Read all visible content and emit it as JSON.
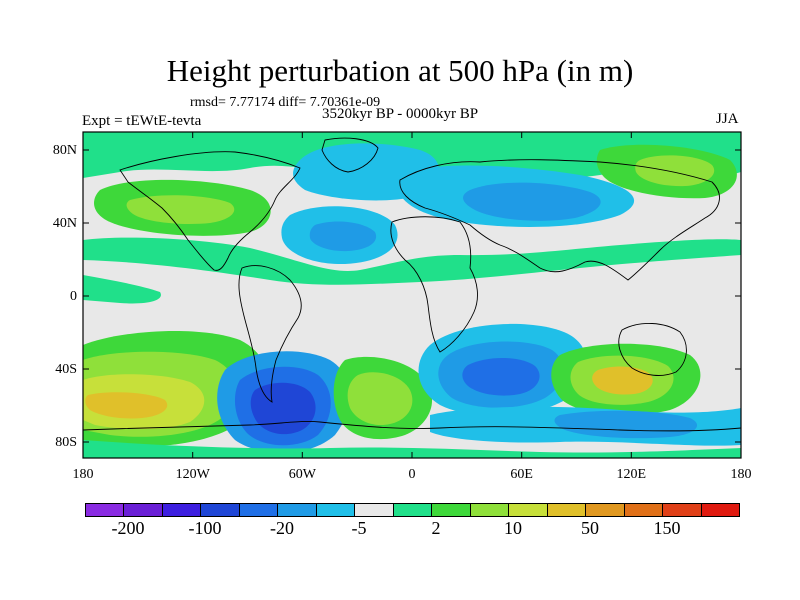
{
  "figure": {
    "title": "Height perturbation at 500 hPa (in m)",
    "stats": "rmsd= 7.77174 diff= 7.70361e-09",
    "period": "3520kyr BP - 0000kyr BP",
    "experiment": "Expt = tEWtE-tevta",
    "season": "JJA"
  },
  "axes": {
    "lat_labels": [
      "80N",
      "40N",
      "0",
      "40S",
      "80S"
    ],
    "lon_labels": [
      "180",
      "120W",
      "60W",
      "0",
      "60E",
      "120E",
      "180"
    ]
  },
  "colorbar": {
    "colors": [
      "#8a2be2",
      "#6a1fd6",
      "#3d1fe0",
      "#1f46d6",
      "#1f6fe6",
      "#1f9be6",
      "#20bfe8",
      "#e8e8e8",
      "#20e08a",
      "#3ed83a",
      "#8fe03a",
      "#c7e03a",
      "#e0c02a",
      "#e09820",
      "#e07018",
      "#e04018",
      "#e01a10"
    ],
    "labels": [
      "-200",
      "-100",
      "-20",
      "-5",
      "2",
      "10",
      "50",
      "150"
    ]
  }
}
